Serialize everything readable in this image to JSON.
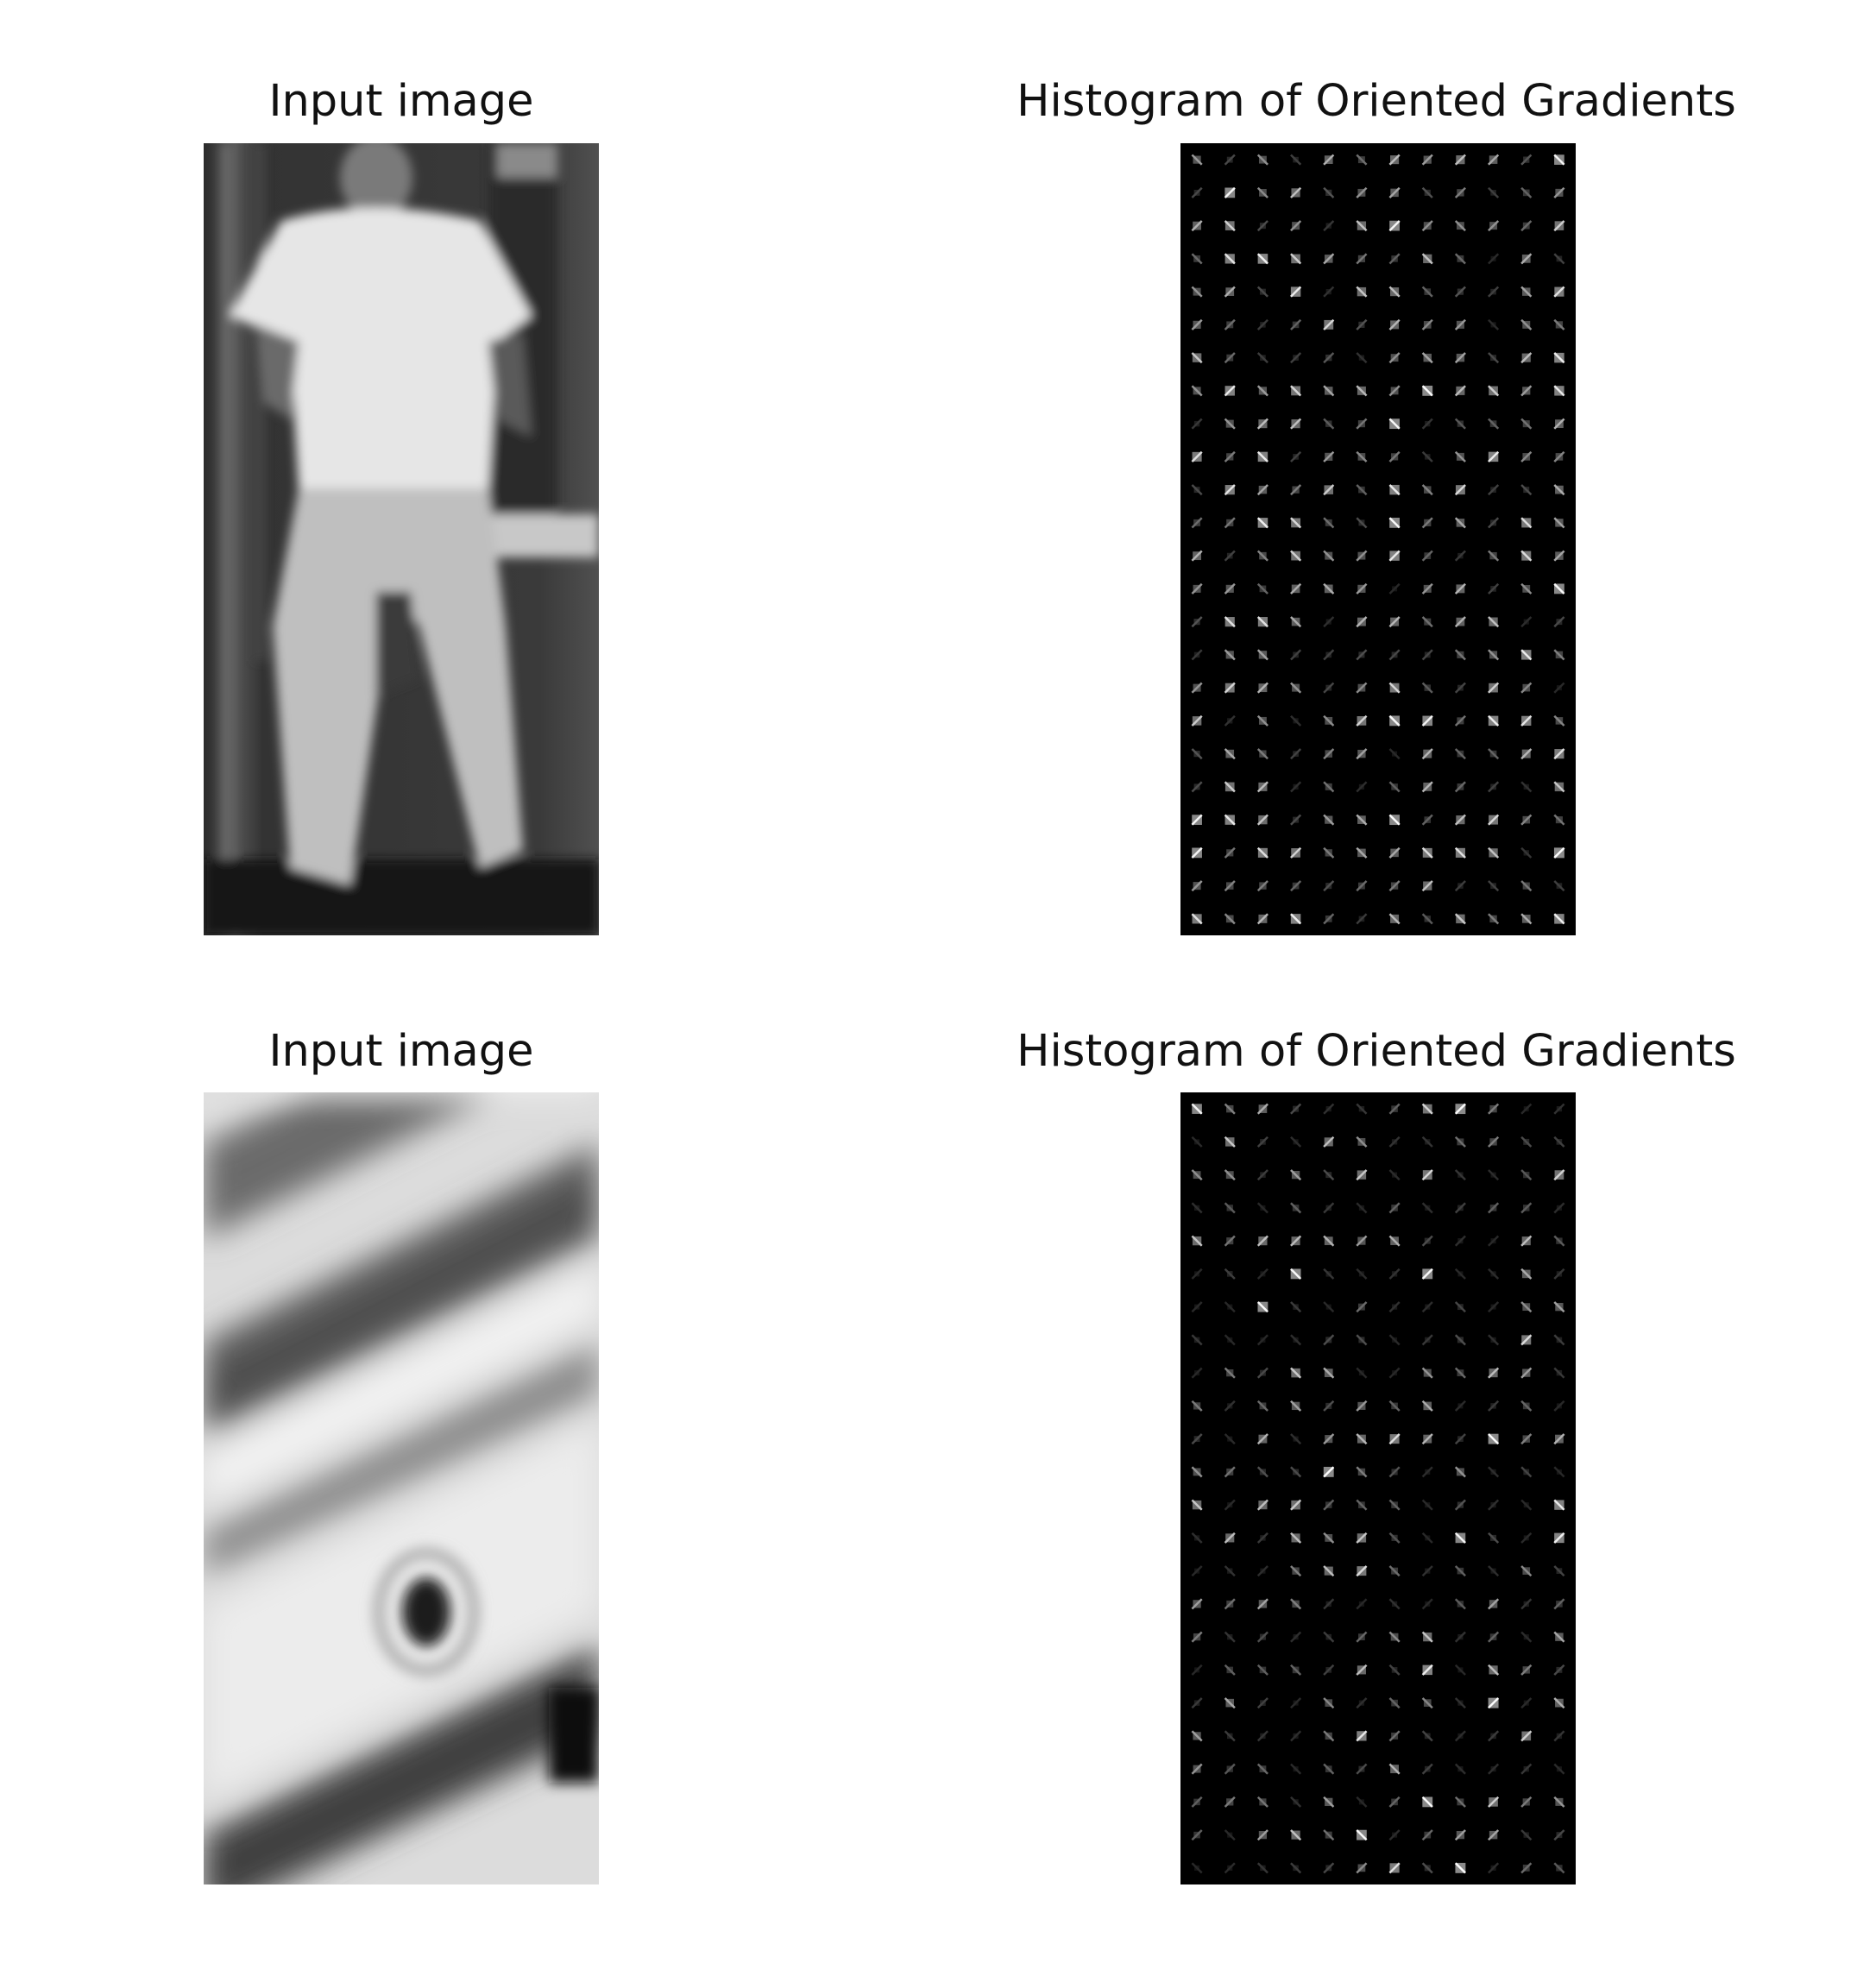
{
  "figure": {
    "panels": [
      {
        "title": "Input image",
        "kind": "photo",
        "subject": "person-back"
      },
      {
        "title": "Histogram of Oriented Gradients",
        "kind": "hog",
        "seed": 7
      },
      {
        "title": "Input image",
        "kind": "photo",
        "subject": "diagonal-stripes"
      },
      {
        "title": "Histogram of Oriented Gradients",
        "kind": "hog",
        "seed": 19
      }
    ],
    "hog_grid": {
      "columns": 12,
      "rows": 24
    },
    "colors": {
      "background": "#ffffff",
      "hog_background": "#000000",
      "text": "#111111"
    }
  }
}
